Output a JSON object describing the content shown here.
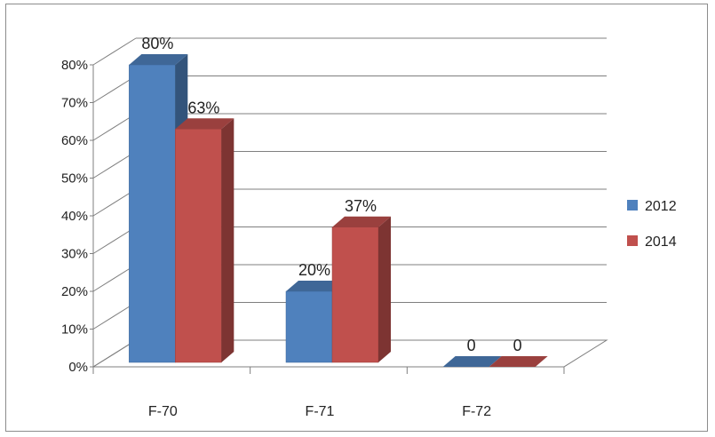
{
  "chart_data": {
    "type": "bar",
    "categories": [
      "F-70",
      "F-71",
      "F-72"
    ],
    "series": [
      {
        "name": "2012",
        "values": [
          80,
          20,
          0
        ],
        "labels": [
          "80%",
          "20%",
          "0"
        ],
        "color": "#4f81bd"
      },
      {
        "name": "2014",
        "values": [
          63,
          37,
          0
        ],
        "labels": [
          "63%",
          "37%",
          "0"
        ],
        "color": "#c0504d"
      }
    ],
    "ylim": [
      0,
      80
    ],
    "yticks": [
      "0%",
      "10%",
      "20%",
      "30%",
      "40%",
      "50%",
      "60%",
      "70%",
      "80%"
    ],
    "grid": true,
    "style_3d": true,
    "legend_position": "right"
  }
}
